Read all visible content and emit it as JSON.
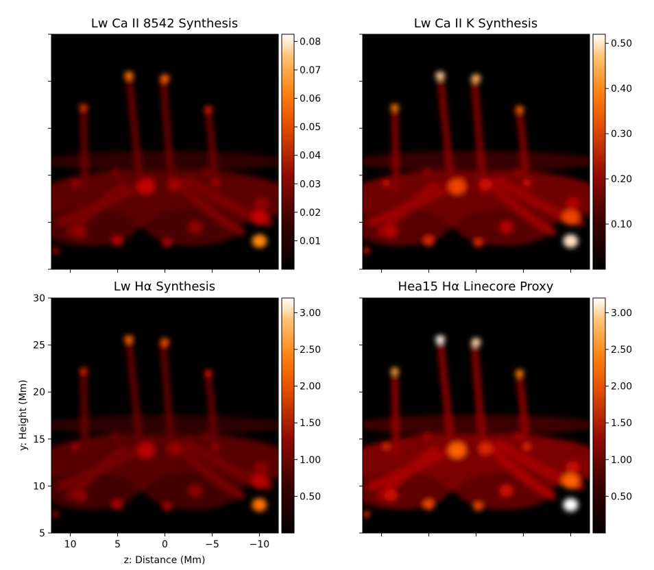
{
  "figure": {
    "shared_ylabel": "y: Height (Mm)",
    "shared_xlabel": "z: Distance (Mm)"
  },
  "chart_data": [
    {
      "type": "heatmap",
      "title": "Lw Ca II 8542 Synthesis",
      "colormap": "gist_heat",
      "xlim": [
        12,
        -12
      ],
      "ylim": [
        5,
        30
      ],
      "xlabel": "",
      "ylabel": "",
      "colorbar": {
        "ticks": [
          0.01,
          0.02,
          0.03,
          0.04,
          0.05,
          0.06,
          0.07,
          0.08
        ],
        "labels": [
          "0.01",
          "0.02",
          "0.03",
          "0.04",
          "0.05",
          "0.06",
          "0.07",
          "0.08"
        ],
        "min": 0.0,
        "max": 0.0825
      },
      "intensity_scale": 0.85
    },
    {
      "type": "heatmap",
      "title": "Lw Ca II K Synthesis",
      "colormap": "gist_heat",
      "xlim": [
        12,
        -12
      ],
      "ylim": [
        5,
        30
      ],
      "xlabel": "",
      "ylabel": "",
      "colorbar": {
        "ticks": [
          0.1,
          0.2,
          0.3,
          0.4,
          0.5
        ],
        "labels": [
          "0.10",
          "0.20",
          "0.30",
          "0.40",
          "0.50"
        ],
        "min": 0.0,
        "max": 0.52
      },
      "intensity_scale": 1.05
    },
    {
      "type": "heatmap",
      "title": "Lw Hα Synthesis",
      "colormap": "gist_heat",
      "xlim": [
        12,
        -12
      ],
      "ylim": [
        5,
        30
      ],
      "xlabel": "z: Distance (Mm)",
      "ylabel": "y: Height (Mm)",
      "x_ticks": [
        10,
        5,
        0,
        -5,
        -10
      ],
      "x_tick_labels": [
        "10",
        "5",
        "0",
        "−5",
        "−10"
      ],
      "y_ticks": [
        5,
        10,
        15,
        20,
        25,
        30
      ],
      "y_tick_labels": [
        "5",
        "10",
        "15",
        "20",
        "25",
        "30"
      ],
      "colorbar": {
        "ticks": [
          0.5,
          1.0,
          1.5,
          2.0,
          2.5,
          3.0
        ],
        "labels": [
          "0.50",
          "1.00",
          "1.50",
          "2.00",
          "2.50",
          "3.00"
        ],
        "min": 0.0,
        "max": 3.2
      },
      "intensity_scale": 0.8
    },
    {
      "type": "heatmap",
      "title": "Hea15 Hα Linecore Proxy",
      "colormap": "gist_heat",
      "xlim": [
        12,
        -12
      ],
      "ylim": [
        5,
        30
      ],
      "xlabel": "",
      "ylabel": "",
      "colorbar": {
        "ticks": [
          0.5,
          1.0,
          1.5,
          2.0,
          2.5,
          3.0
        ],
        "labels": [
          "0.50",
          "1.00",
          "1.50",
          "2.00",
          "2.50",
          "3.00"
        ],
        "min": 0.0,
        "max": 3.2
      },
      "intensity_scale": 1.15
    }
  ]
}
